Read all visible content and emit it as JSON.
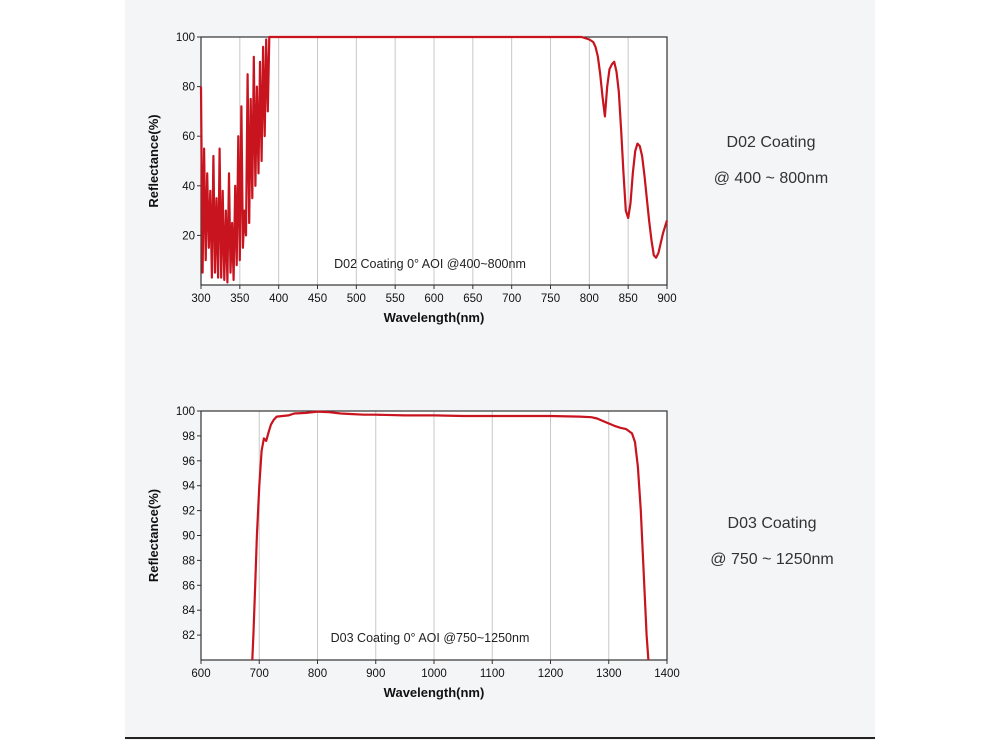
{
  "colors": {
    "curve": "#c8141e",
    "grid": "#c8c8c8",
    "axis": "#333333",
    "panel": "#f4f5f7"
  },
  "chart_data": [
    {
      "type": "line",
      "title": "D02 Coating 0° AOI @400~800nm",
      "annotation": "D02 Coating  0°  AOI @400~800nm",
      "xlabel": "Wavelength(nm)",
      "ylabel": "Reflectance(%)",
      "xlim": [
        300,
        900
      ],
      "ylim": [
        0,
        100
      ],
      "xticks": [
        "300",
        "350",
        "400",
        "450",
        "500",
        "550",
        "600",
        "650",
        "700",
        "750",
        "800",
        "850",
        "900"
      ],
      "yticks": [
        "20",
        "40",
        "60",
        "80",
        "100"
      ],
      "x_gridlines": [
        350,
        400,
        450,
        500,
        550,
        600,
        650,
        700,
        750,
        800,
        850
      ],
      "series": [
        {
          "name": "D02 Coating",
          "x": [
            300,
            302,
            304,
            306,
            308,
            310,
            312,
            314,
            316,
            318,
            320,
            322,
            324,
            326,
            328,
            330,
            332,
            334,
            336,
            338,
            340,
            342,
            344,
            346,
            348,
            350,
            352,
            354,
            356,
            358,
            360,
            362,
            364,
            366,
            368,
            370,
            372,
            374,
            376,
            378,
            380,
            382,
            384,
            386,
            388,
            390,
            392,
            395,
            400,
            450,
            500,
            550,
            600,
            650,
            700,
            750,
            790,
            800,
            805,
            808,
            811,
            814,
            817,
            820,
            823,
            826,
            829,
            832,
            835,
            838,
            841,
            844,
            847,
            850,
            853,
            856,
            859,
            862,
            865,
            868,
            871,
            874,
            877,
            880,
            883,
            886,
            889,
            892,
            895,
            898,
            900
          ],
          "y": [
            80,
            5,
            55,
            10,
            45,
            15,
            38,
            3,
            52,
            5,
            35,
            3,
            55,
            3,
            38,
            2,
            30,
            1,
            45,
            5,
            25,
            2,
            40,
            8,
            60,
            10,
            72,
            15,
            30,
            20,
            85,
            25,
            75,
            35,
            92,
            40,
            80,
            45,
            90,
            50,
            96,
            60,
            99,
            70,
            100,
            100,
            100,
            100,
            100,
            100,
            100,
            100,
            100,
            100,
            100,
            100,
            100,
            99,
            98,
            96,
            92,
            85,
            76,
            68,
            80,
            87,
            89,
            90,
            86,
            78,
            62,
            45,
            30,
            27,
            33,
            45,
            54,
            57,
            56,
            52,
            44,
            35,
            26,
            18,
            12,
            11,
            13,
            17,
            21,
            24,
            26
          ]
        }
      ]
    },
    {
      "type": "line",
      "title": "D03 Coating 0° AOI @750~1250nm",
      "annotation": "D03 Coating  0°  AOI @750~1250nm",
      "xlabel": "Wavelength(nm)",
      "ylabel": "Reflectance(%)",
      "xlim": [
        600,
        1400
      ],
      "ylim": [
        80,
        100
      ],
      "xticks": [
        "600",
        "700",
        "800",
        "900",
        "1000",
        "1100",
        "1200",
        "1300",
        "1400"
      ],
      "yticks": [
        "82",
        "84",
        "86",
        "88",
        "90",
        "92",
        "94",
        "96",
        "98",
        "100"
      ],
      "x_gridlines": [
        700,
        800,
        900,
        1000,
        1100,
        1200,
        1300
      ],
      "series": [
        {
          "name": "D03 Coating",
          "x": [
            688,
            690,
            693,
            696,
            700,
            704,
            708,
            712,
            716,
            720,
            725,
            730,
            740,
            750,
            760,
            780,
            800,
            820,
            840,
            860,
            880,
            900,
            950,
            1000,
            1050,
            1100,
            1150,
            1200,
            1250,
            1270,
            1280,
            1290,
            1300,
            1310,
            1320,
            1330,
            1340,
            1345,
            1350,
            1355,
            1360,
            1365,
            1368
          ],
          "y": [
            80,
            82,
            86,
            90,
            94,
            96.8,
            97.8,
            97.6,
            98.3,
            98.9,
            99.3,
            99.55,
            99.6,
            99.65,
            99.8,
            99.85,
            99.95,
            99.9,
            99.8,
            99.75,
            99.7,
            99.7,
            99.65,
            99.65,
            99.6,
            99.6,
            99.6,
            99.6,
            99.55,
            99.5,
            99.4,
            99.2,
            99.0,
            98.8,
            98.65,
            98.55,
            98.2,
            97.5,
            95.5,
            92,
            87,
            82,
            80
          ]
        }
      ]
    }
  ],
  "side_labels": [
    {
      "line1": "D02 Coating",
      "line2": "@ 400 ~ 800nm"
    },
    {
      "line1": "D03 Coating",
      "line2": "@ 750 ~ 1250nm"
    }
  ]
}
